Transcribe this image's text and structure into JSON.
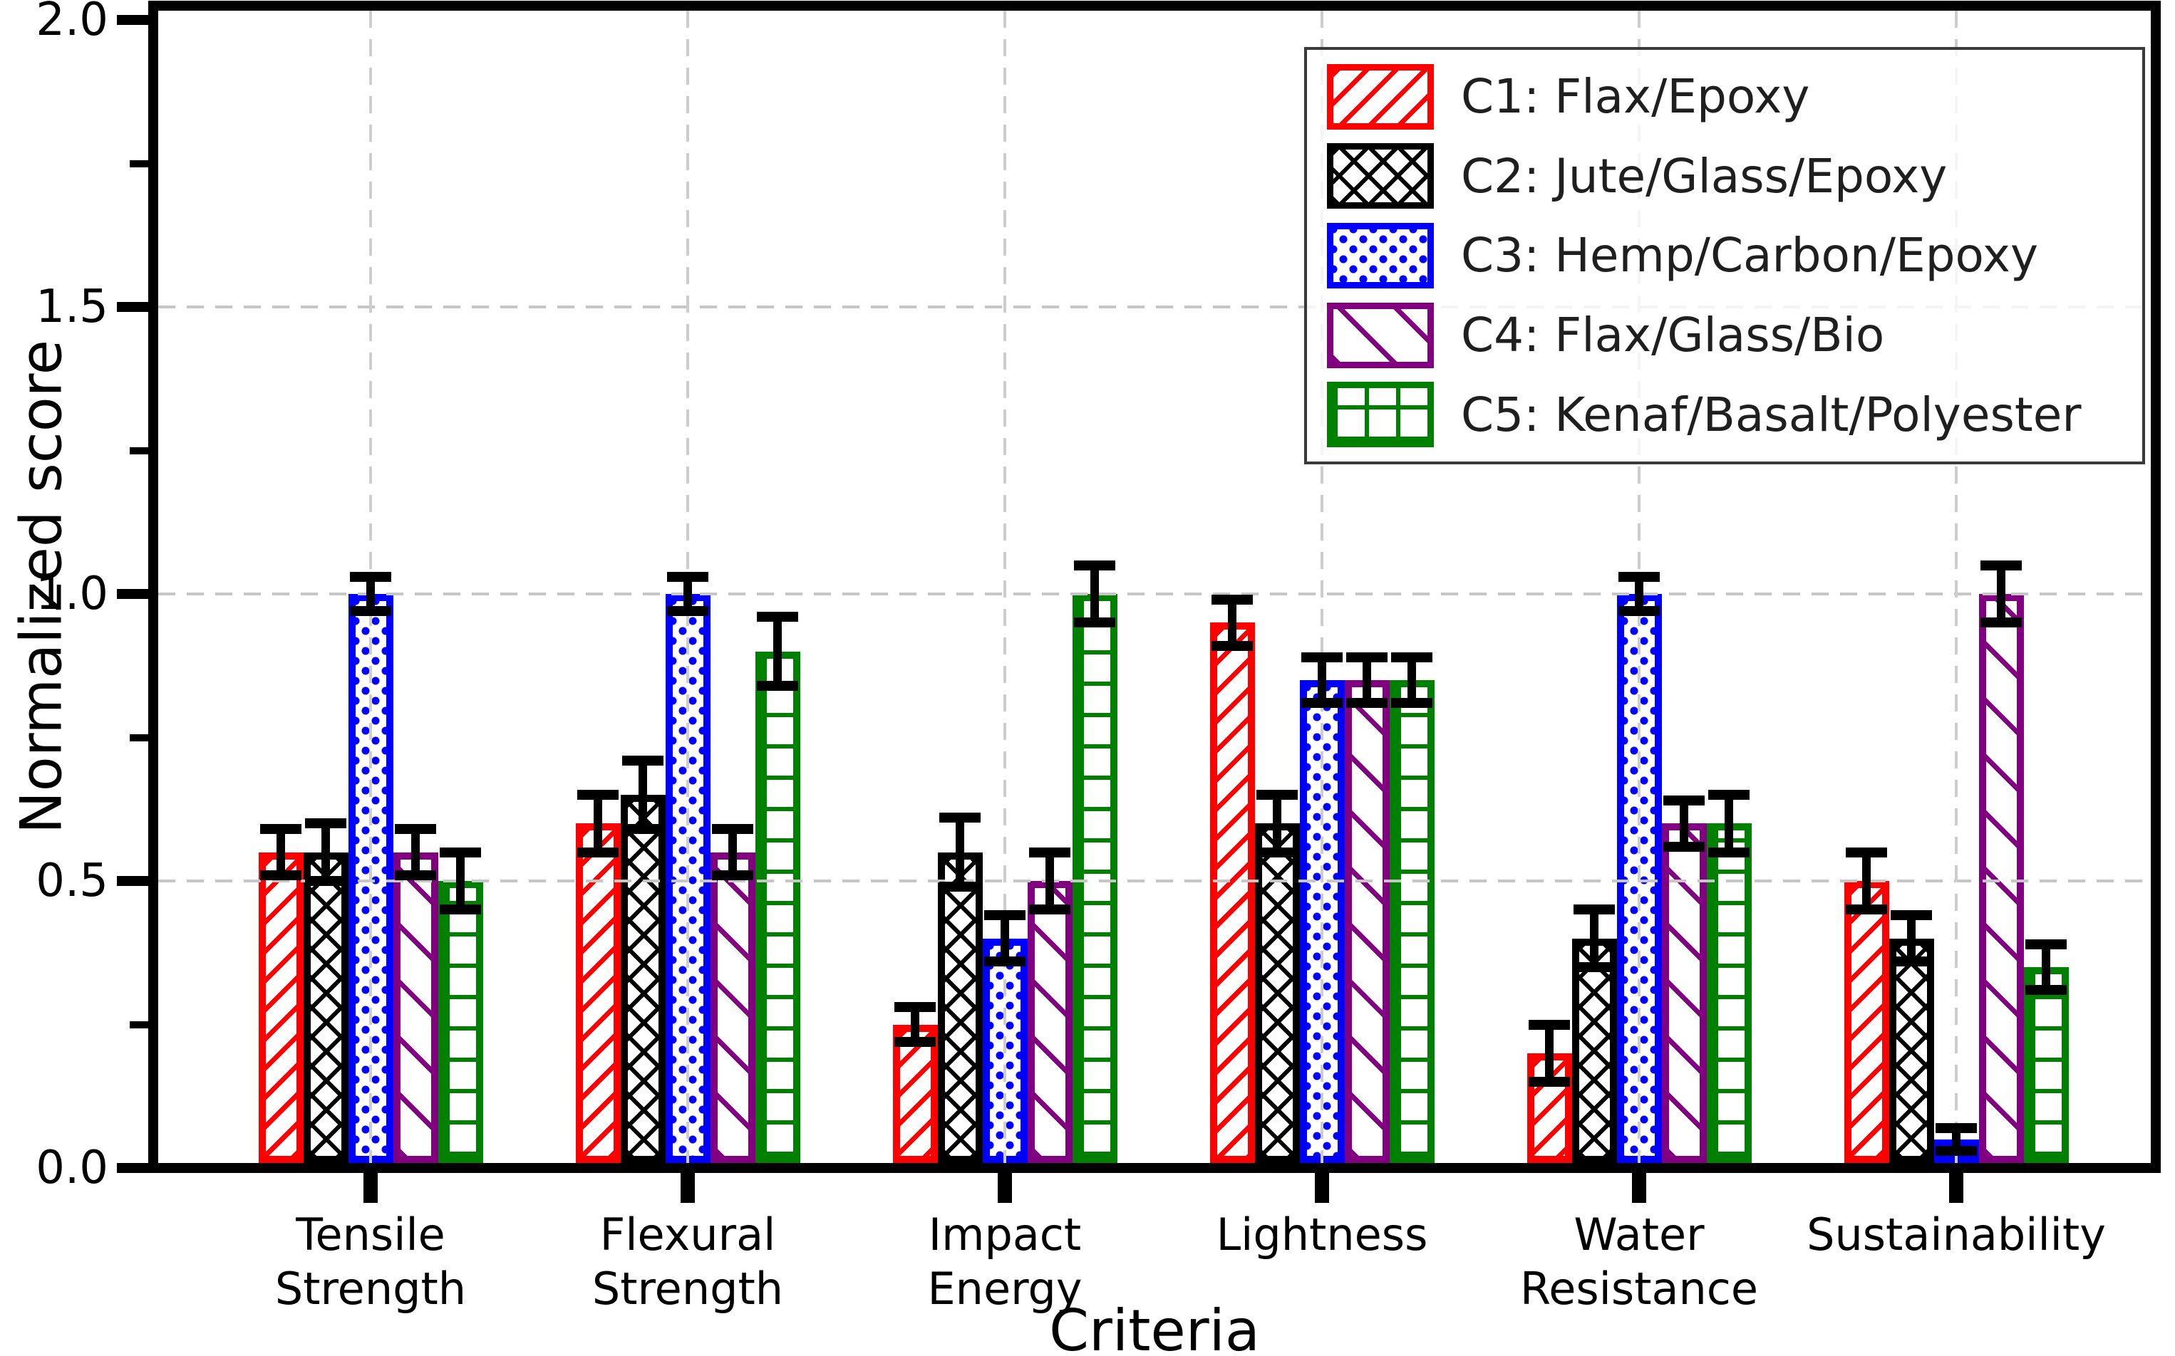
{
  "figure": {
    "ylabel": "Normalized score",
    "xlabel": "Criteria",
    "background": "#ffffff"
  },
  "axes": {
    "ylim": [
      0.0,
      2.0
    ],
    "y_tick_labels": [
      "0.0",
      "0.5",
      "1.0",
      "1.5",
      "2.0"
    ],
    "y_tick_values": [
      0.0,
      0.5,
      1.0,
      1.5,
      2.0
    ],
    "y_minor_tick_values": [
      0.25,
      0.75,
      1.25,
      1.75
    ],
    "grid_style": "dashed",
    "grid_color": "#c8c8c8",
    "axis_color": "#000000"
  },
  "legend": {
    "position": "upper right",
    "border_color": "#3a3a3a"
  },
  "chart_data": {
    "type": "bar",
    "title": "",
    "xlabel": "Criteria",
    "ylabel": "Normalized score",
    "ylim": [
      0.0,
      2.0
    ],
    "grid": true,
    "legend_position": "upper right",
    "error_bars": true,
    "error_bar_color": "#000000",
    "categories": [
      "Tensile Strength",
      "Flexural Strength",
      "Impact Energy",
      "Lightness",
      "Water Resistance",
      "Sustainability"
    ],
    "category_label_lines": [
      [
        "Tensile",
        "Strength"
      ],
      [
        "Flexural",
        "Strength"
      ],
      [
        "Impact",
        "Energy"
      ],
      [
        "Lightness"
      ],
      [
        "Water",
        "Resistance"
      ],
      [
        "Sustainability"
      ]
    ],
    "series": [
      {
        "name": "C1: Flax/Epoxy",
        "color": "#ff0000",
        "hatch": "/",
        "values": [
          0.55,
          0.6,
          0.25,
          0.95,
          0.2,
          0.5
        ],
        "errors": [
          0.04,
          0.05,
          0.03,
          0.04,
          0.05,
          0.05
        ]
      },
      {
        "name": "C2: Jute/Glass/Epoxy",
        "color": "#000000",
        "hatch": "x",
        "values": [
          0.55,
          0.65,
          0.55,
          0.6,
          0.4,
          0.4
        ],
        "errors": [
          0.05,
          0.06,
          0.06,
          0.05,
          0.05,
          0.04
        ]
      },
      {
        "name": "C3: Hemp/Carbon/Epoxy",
        "color": "#0000ff",
        "hatch": ".",
        "values": [
          1.0,
          1.0,
          0.4,
          0.85,
          1.0,
          0.05
        ],
        "errors": [
          0.03,
          0.03,
          0.04,
          0.04,
          0.03,
          0.02
        ]
      },
      {
        "name": "C4: Flax/Glass/Bio",
        "color": "#800080",
        "hatch": "\\",
        "values": [
          0.55,
          0.55,
          0.5,
          0.85,
          0.6,
          1.0
        ],
        "errors": [
          0.04,
          0.04,
          0.05,
          0.04,
          0.04,
          0.05
        ]
      },
      {
        "name": "C5: Kenaf/Basalt/Polyester",
        "color": "#008000",
        "hatch": "+",
        "values": [
          0.5,
          0.9,
          1.0,
          0.85,
          0.6,
          0.35
        ],
        "errors": [
          0.05,
          0.06,
          0.05,
          0.04,
          0.05,
          0.04
        ]
      }
    ]
  }
}
